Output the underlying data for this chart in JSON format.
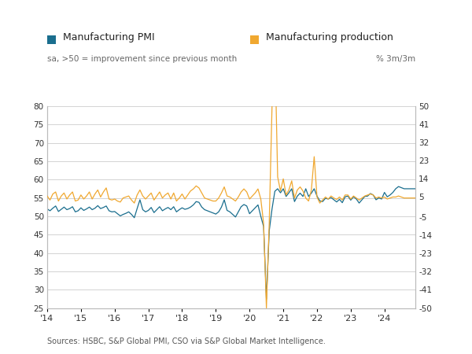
{
  "pmi_color": "#1a6e8e",
  "prod_color": "#f0a830",
  "background": "#ffffff",
  "grid_color": "#cccccc",
  "legend_label_pmi": "Manufacturing PMI",
  "legend_label_prod": "Manufacturing production",
  "subtitle_left": "sa, >50 = improvement since previous month",
  "subtitle_right": "% 3m/3m",
  "source_text": "Sources: HSBC, S&P Global PMI, CSO via S&P Global Market Intelligence.",
  "ylim_left": [
    25,
    80
  ],
  "ylim_right": [
    -50,
    50
  ],
  "yticks_left": [
    25,
    30,
    35,
    40,
    45,
    50,
    55,
    60,
    65,
    70,
    75,
    80
  ],
  "yticks_right": [
    -50,
    -41,
    -32,
    -23,
    -14,
    -5,
    5,
    14,
    23,
    32,
    41,
    50
  ],
  "xtick_labels": [
    "'14",
    "'15",
    "'16",
    "'17",
    "'18",
    "'19",
    "'20",
    "'21",
    "'22",
    "'23",
    "'24"
  ],
  "pmi_data": [
    52.0,
    51.5,
    52.2,
    52.8,
    51.3,
    51.9,
    52.5,
    51.8,
    52.1,
    52.6,
    51.2,
    51.5,
    52.3,
    51.6,
    52.0,
    52.5,
    51.8,
    52.2,
    52.9,
    52.1,
    52.4,
    52.8,
    51.5,
    51.2,
    51.3,
    50.7,
    50.1,
    50.5,
    50.8,
    51.2,
    50.5,
    49.6,
    52.1,
    54.5,
    51.8,
    51.2,
    51.6,
    52.4,
    51.0,
    51.8,
    52.6,
    51.5,
    52.0,
    52.4,
    51.8,
    52.6,
    51.2,
    51.8,
    52.3,
    51.9,
    52.1,
    52.5,
    53.1,
    54.0,
    53.8,
    52.5,
    51.8,
    51.5,
    51.2,
    50.9,
    50.6,
    51.2,
    52.5,
    54.5,
    51.6,
    51.2,
    50.5,
    49.8,
    51.2,
    52.6,
    53.2,
    52.8,
    50.7,
    51.5,
    52.3,
    53.1,
    50.0,
    47.2,
    27.4,
    46.0,
    52.0,
    56.8,
    57.5,
    56.4,
    57.5,
    55.4,
    56.4,
    57.5,
    54.0,
    55.5,
    56.3,
    55.4,
    57.5,
    55.4,
    56.3,
    57.5,
    55.5,
    54.2,
    54.0,
    54.9,
    54.7,
    55.1,
    54.5,
    53.9,
    54.6,
    53.7,
    55.3,
    55.5,
    54.4,
    55.3,
    54.7,
    53.6,
    54.5,
    55.4,
    55.5,
    56.2,
    55.8,
    54.5,
    55.0,
    54.7,
    56.5,
    55.3,
    55.8,
    56.5,
    57.5,
    58.1,
    57.8,
    57.5,
    57.5,
    57.5,
    57.5,
    57.5
  ],
  "prod_data": [
    5.5,
    3.5,
    6.5,
    7.5,
    3.0,
    5.5,
    7.0,
    4.0,
    6.0,
    7.5,
    3.0,
    3.5,
    6.0,
    4.0,
    5.5,
    7.5,
    4.0,
    6.5,
    8.5,
    5.0,
    7.5,
    9.5,
    4.0,
    3.5,
    4.0,
    3.0,
    2.5,
    4.5,
    5.0,
    5.5,
    3.5,
    2.0,
    6.0,
    8.5,
    5.5,
    4.0,
    5.5,
    7.0,
    3.5,
    5.5,
    7.5,
    4.5,
    6.0,
    7.0,
    4.0,
    7.0,
    3.0,
    4.5,
    6.5,
    4.0,
    6.0,
    8.0,
    9.0,
    10.5,
    9.5,
    7.0,
    4.5,
    4.0,
    3.5,
    3.0,
    3.0,
    4.5,
    7.0,
    10.0,
    5.5,
    5.0,
    4.0,
    3.0,
    5.0,
    7.5,
    9.0,
    7.5,
    4.0,
    5.5,
    7.0,
    9.0,
    4.0,
    -8.0,
    -50.0,
    -8.0,
    50.0,
    80.0,
    15.0,
    8.0,
    14.0,
    6.0,
    8.5,
    13.0,
    4.5,
    8.5,
    10.0,
    8.0,
    4.5,
    3.0,
    8.5,
    25.0,
    5.0,
    2.0,
    3.5,
    5.0,
    4.0,
    5.5,
    4.5,
    3.8,
    5.0,
    3.5,
    6.0,
    6.0,
    4.0,
    5.5,
    4.5,
    3.5,
    4.5,
    5.5,
    6.0,
    6.5,
    6.0,
    4.5,
    5.0,
    4.5,
    5.0,
    4.0,
    4.5,
    5.0,
    5.0,
    5.5,
    5.0,
    4.5,
    4.5,
    4.5,
    4.5,
    4.5
  ],
  "n_months": 132,
  "xtick_positions": [
    0,
    12,
    24,
    36,
    48,
    60,
    72,
    84,
    96,
    108,
    120
  ]
}
